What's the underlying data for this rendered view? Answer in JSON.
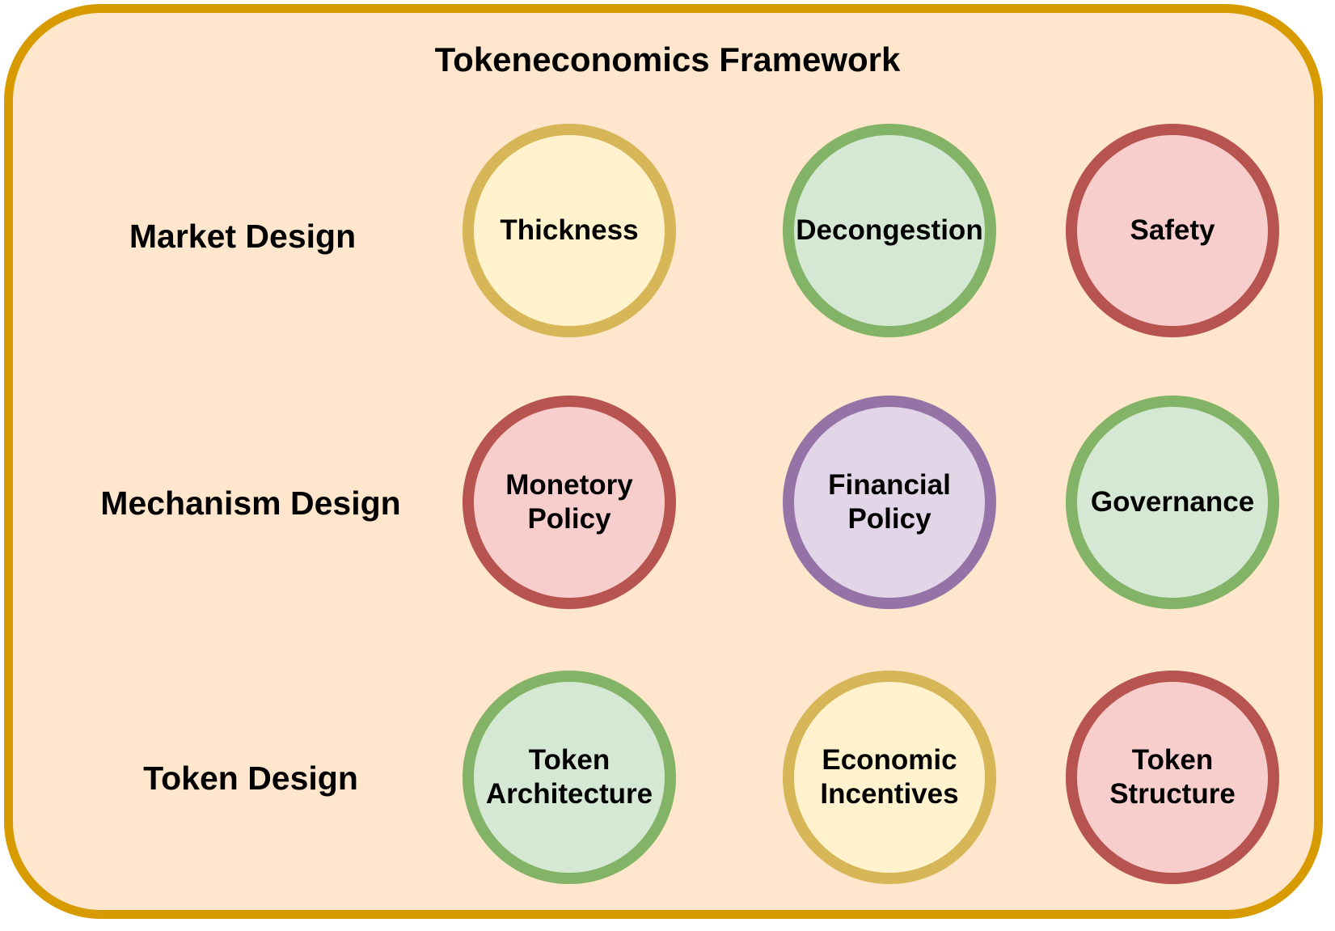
{
  "title": "Tokeneconomics Framework",
  "colors": {
    "frame_fill": "#ffe6cc",
    "frame_stroke": "#d79b00",
    "yellow": {
      "fill": "#fff2cc",
      "stroke": "#d6b656"
    },
    "green": {
      "fill": "#d5e8d4",
      "stroke": "#82b366"
    },
    "red": {
      "fill": "#f8cecc",
      "stroke": "#b85450"
    },
    "purple": {
      "fill": "#e1d5e7",
      "stroke": "#9673a6"
    }
  },
  "rows": [
    {
      "label": "Market Design",
      "nodes": [
        {
          "label": "Thickness",
          "color": "yellow"
        },
        {
          "label": "Decongestion",
          "color": "green"
        },
        {
          "label": "Safety",
          "color": "red"
        }
      ]
    },
    {
      "label": "Mechanism Design",
      "nodes": [
        {
          "label": "Monetory\nPolicy",
          "color": "red"
        },
        {
          "label": "Financial\nPolicy",
          "color": "purple"
        },
        {
          "label": "Governance",
          "color": "green"
        }
      ]
    },
    {
      "label": "Token Design",
      "nodes": [
        {
          "label": "Token\nArchitecture",
          "color": "green"
        },
        {
          "label": "Economic\nIncentives",
          "color": "yellow"
        },
        {
          "label": "Token\nStructure",
          "color": "red"
        }
      ]
    }
  ]
}
